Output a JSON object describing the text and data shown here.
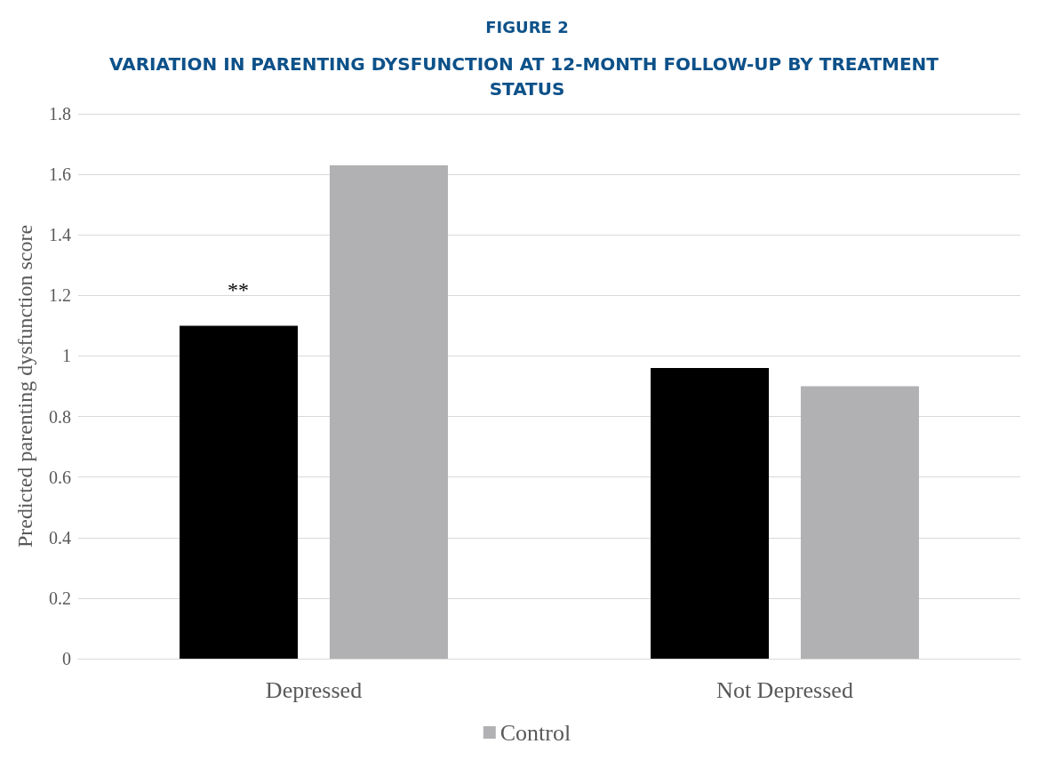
{
  "chart_data": {
    "type": "bar",
    "title": "FIGURE 2",
    "subtitle": "VARIATION IN PARENTING DYSFUNCTION AT 12-MONTH FOLLOW-UP BY TREATMENT STATUS",
    "ylabel": "Predicted parenting dysfunction score",
    "categories": [
      "Depressed",
      "Not Depressed"
    ],
    "series": [
      {
        "color": "#000000",
        "values": [
          1.1,
          0.96
        ]
      },
      {
        "name": "Control",
        "color": "#b1b1b4",
        "values": [
          1.63,
          0.9
        ]
      }
    ],
    "ylim": [
      0,
      1.8
    ],
    "yticks": [
      0,
      0.2,
      0.4,
      0.6,
      0.8,
      1,
      1.2,
      1.4,
      1.6,
      1.8
    ],
    "grid": "y",
    "legend": "bottom",
    "annotations": [
      "**"
    ]
  }
}
